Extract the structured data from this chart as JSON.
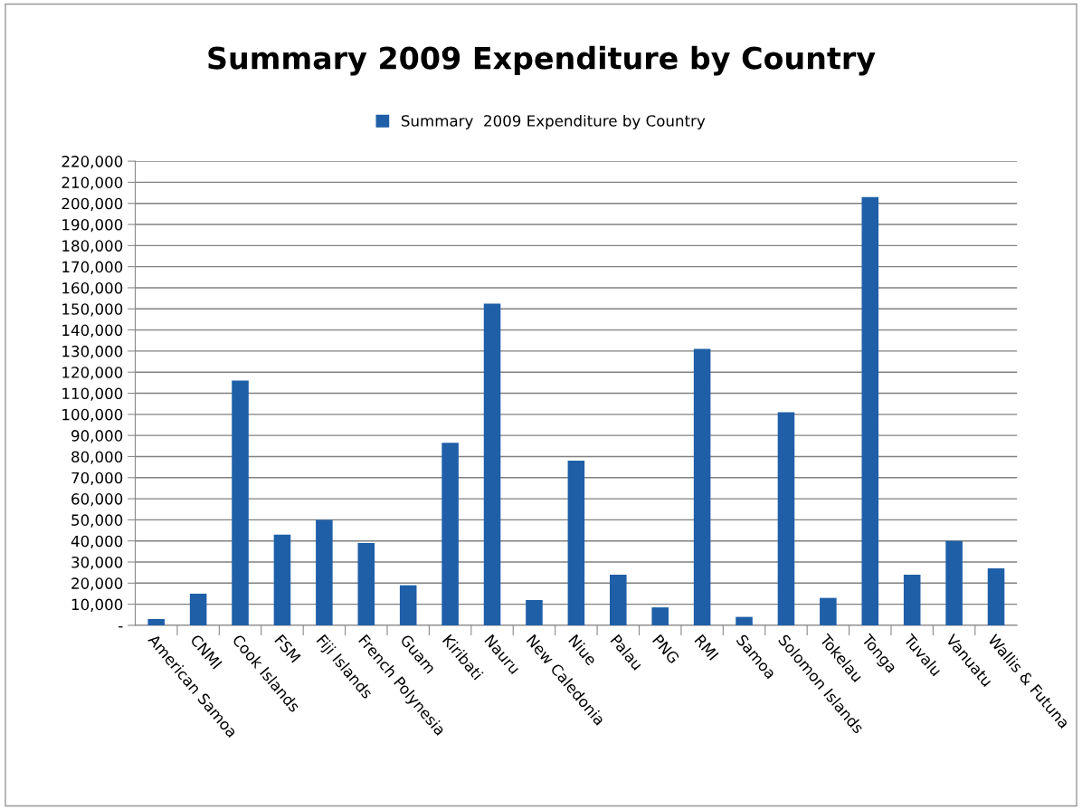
{
  "chart_data": {
    "type": "bar",
    "title": "Summary 2009 Expenditure by Country",
    "categories": [
      "American Samoa",
      "CNMI",
      "Cook Islands",
      "FSM",
      "Fiji Islands",
      "French Polynesia",
      "Guam",
      "Kiribati",
      "Nauru",
      "New Caledonia",
      "Niue",
      "Palau",
      "PNG",
      "RMI",
      "Samoa",
      "Solomon Islands",
      "Tokelau",
      "Tonga",
      "Tuvalu",
      "Vanuatu",
      "Wallis & Futuna"
    ],
    "series": [
      {
        "name": "Summary  2009 Expenditure by Country",
        "color": "#1f5fa8",
        "values": [
          3000,
          15000,
          116000,
          43000,
          50000,
          39000,
          19000,
          86500,
          152500,
          12000,
          78000,
          24000,
          8500,
          131000,
          4000,
          101000,
          13000,
          203000,
          24000,
          40000,
          27000
        ]
      }
    ],
    "ylim": [
      0,
      220000
    ],
    "yticks": [
      {
        "value": 0,
        "label": "-"
      },
      {
        "value": 10000,
        "label": "10,000"
      },
      {
        "value": 20000,
        "label": "20,000"
      },
      {
        "value": 30000,
        "label": "30,000"
      },
      {
        "value": 40000,
        "label": "40,000"
      },
      {
        "value": 50000,
        "label": "50,000"
      },
      {
        "value": 60000,
        "label": "60,000"
      },
      {
        "value": 70000,
        "label": "70,000"
      },
      {
        "value": 80000,
        "label": "80,000"
      },
      {
        "value": 90000,
        "label": "90,000"
      },
      {
        "value": 100000,
        "label": "100,000"
      },
      {
        "value": 110000,
        "label": "110,000"
      },
      {
        "value": 120000,
        "label": "120,000"
      },
      {
        "value": 130000,
        "label": "130,000"
      },
      {
        "value": 140000,
        "label": "140,000"
      },
      {
        "value": 150000,
        "label": "150,000"
      },
      {
        "value": 160000,
        "label": "160,000"
      },
      {
        "value": 170000,
        "label": "170,000"
      },
      {
        "value": 180000,
        "label": "180,000"
      },
      {
        "value": 190000,
        "label": "190,000"
      },
      {
        "value": 200000,
        "label": "200,000"
      },
      {
        "value": 210000,
        "label": "210,000"
      },
      {
        "value": 220000,
        "label": "220,000"
      }
    ],
    "grid": "y",
    "legend": "top"
  }
}
